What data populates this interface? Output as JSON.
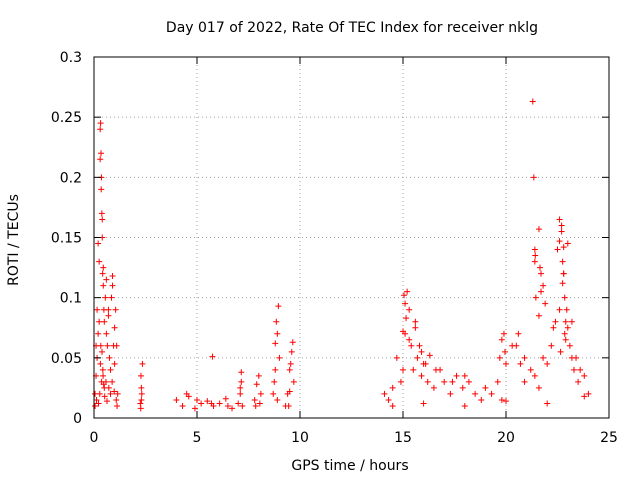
{
  "chart_data": {
    "type": "scatter",
    "title": "Day 017 of 2022, Rate Of TEC Index for receiver nklg",
    "xlabel": "GPS time / hours",
    "ylabel": "ROTI / TECUs",
    "xlim": [
      0,
      25
    ],
    "ylim": [
      0,
      0.3
    ],
    "xticks": [
      0,
      5,
      10,
      15,
      20,
      25
    ],
    "yticks": [
      0,
      0.05,
      0.1,
      0.15,
      0.2,
      0.25,
      0.3
    ],
    "xtick_labels": [
      "0",
      "5",
      "10",
      "15",
      "20",
      "25"
    ],
    "ytick_labels": [
      "0",
      "0.05",
      "0.1",
      "0.15",
      "0.2",
      "0.25",
      "0.3"
    ],
    "grid": true,
    "marker": "plus",
    "color": "#ff0000",
    "series": [
      {
        "x": [
          0.05,
          0.1,
          0.15,
          0.2,
          0.25,
          0.3,
          0.32,
          0.34,
          0.36,
          0.38,
          0.4,
          0.42,
          0.45,
          0.48,
          0.5,
          0.55,
          0.6,
          0.65,
          0.7,
          0.75,
          0.8,
          0.85,
          0.9,
          0.95,
          1.0,
          1.05,
          1.1,
          1.15,
          0.3,
          0.35,
          0.4,
          0.2,
          0.45,
          0.6,
          0.7,
          0.9,
          1.0,
          0.1,
          0.15,
          0.25,
          0.33,
          0.37,
          0.43,
          0.5,
          0.58,
          0.8,
          1.08,
          0.05,
          0.12,
          0.22,
          0.28,
          0.31,
          0.39,
          0.44,
          0.47,
          0.52,
          0.63,
          0.72,
          0.88,
          0.98,
          1.12,
          2.25,
          2.3,
          2.35,
          2.28,
          2.32,
          2.3,
          2.27,
          4.0,
          4.3,
          4.6,
          4.9,
          5.2,
          5.5,
          5.8,
          6.1,
          6.4,
          6.7,
          7.0,
          7.2,
          4.5,
          5.0,
          5.7,
          6.5,
          7.1,
          7.1,
          7.15,
          7.15,
          5.75,
          7.8,
          7.9,
          8.0,
          8.1,
          7.85,
          8.05,
          8.7,
          8.8,
          8.9,
          9.0,
          8.75,
          8.85,
          8.95,
          8.8,
          8.9,
          9.3,
          9.4,
          9.5,
          9.6,
          9.7,
          9.45,
          9.55,
          9.65,
          9.5,
          14.1,
          14.3,
          14.5,
          14.7,
          14.9,
          15.0,
          15.1,
          15.2,
          15.3,
          15.4,
          15.5,
          15.6,
          15.7,
          15.8,
          15.9,
          16.0,
          16.2,
          16.5,
          16.8,
          17.0,
          17.3,
          17.6,
          17.9,
          18.2,
          18.5,
          18.8,
          19.0,
          19.3,
          19.6,
          19.8,
          20.0,
          20.3,
          20.6,
          20.9,
          21.2,
          21.4,
          21.6,
          21.8,
          22.0,
          22.2,
          22.4,
          22.6,
          22.8,
          23.0,
          23.2,
          23.4,
          23.6,
          23.8,
          24.0,
          15.05,
          15.1,
          15.15,
          15.0,
          15.3,
          15.6,
          15.9,
          16.1,
          16.3,
          16.6,
          17.4,
          18.0,
          19.7,
          19.8,
          19.9,
          19.95,
          20.5,
          20.7,
          20.9,
          21.3,
          21.35,
          21.4,
          21.45,
          21.6,
          21.7,
          21.8,
          21.9,
          22.3,
          22.5,
          22.6,
          22.7,
          22.75,
          22.8,
          22.85,
          22.9,
          22.95,
          23.0,
          23.1,
          23.2,
          23.3,
          23.5,
          21.4,
          21.42,
          21.6,
          21.65,
          21.7,
          22.6,
          22.7,
          22.8,
          22.75,
          22.85,
          22.65,
          22.9,
          14.5,
          16.0,
          18.0,
          20.0,
          22.0,
          23.8
        ],
        "y": [
          0.02,
          0.06,
          0.09,
          0.07,
          0.13,
          0.24,
          0.245,
          0.22,
          0.2,
          0.17,
          0.15,
          0.12,
          0.11,
          0.09,
          0.08,
          0.1,
          0.07,
          0.06,
          0.09,
          0.05,
          0.04,
          0.1,
          0.118,
          0.06,
          0.045,
          0.09,
          0.06,
          0.02,
          0.215,
          0.19,
          0.165,
          0.145,
          0.125,
          0.115,
          0.085,
          0.11,
          0.075,
          0.035,
          0.05,
          0.08,
          0.06,
          0.03,
          0.04,
          0.025,
          0.03,
          0.02,
          0.015,
          0.01,
          0.015,
          0.012,
          0.02,
          0.045,
          0.055,
          0.035,
          0.028,
          0.018,
          0.014,
          0.025,
          0.03,
          0.022,
          0.01,
          0.012,
          0.025,
          0.045,
          0.035,
          0.02,
          0.015,
          0.008,
          0.015,
          0.01,
          0.018,
          0.008,
          0.012,
          0.014,
          0.01,
          0.012,
          0.016,
          0.008,
          0.012,
          0.01,
          0.02,
          0.015,
          0.012,
          0.01,
          0.02,
          0.025,
          0.038,
          0.03,
          0.051,
          0.015,
          0.028,
          0.035,
          0.02,
          0.01,
          0.012,
          0.02,
          0.04,
          0.07,
          0.05,
          0.03,
          0.08,
          0.093,
          0.062,
          0.015,
          0.01,
          0.02,
          0.04,
          0.055,
          0.03,
          0.01,
          0.045,
          0.063,
          0.022,
          0.02,
          0.015,
          0.025,
          0.05,
          0.03,
          0.04,
          0.07,
          0.105,
          0.09,
          0.06,
          0.04,
          0.08,
          0.05,
          0.06,
          0.035,
          0.045,
          0.03,
          0.025,
          0.04,
          0.03,
          0.02,
          0.035,
          0.025,
          0.03,
          0.02,
          0.015,
          0.025,
          0.02,
          0.03,
          0.015,
          0.045,
          0.06,
          0.07,
          0.03,
          0.04,
          0.035,
          0.025,
          0.05,
          0.045,
          0.06,
          0.08,
          0.09,
          0.12,
          0.145,
          0.08,
          0.05,
          0.04,
          0.035,
          0.02,
          0.102,
          0.095,
          0.083,
          0.072,
          0.065,
          0.075,
          0.055,
          0.045,
          0.052,
          0.04,
          0.03,
          0.035,
          0.05,
          0.065,
          0.07,
          0.055,
          0.06,
          0.045,
          0.05,
          0.263,
          0.2,
          0.13,
          0.1,
          0.085,
          0.12,
          0.11,
          0.095,
          0.075,
          0.14,
          0.165,
          0.155,
          0.13,
          0.12,
          0.1,
          0.08,
          0.09,
          0.075,
          0.06,
          0.05,
          0.04,
          0.03,
          0.14,
          0.135,
          0.157,
          0.125,
          0.105,
          0.147,
          0.16,
          0.142,
          0.112,
          0.07,
          0.055,
          0.065,
          0.01,
          0.012,
          0.01,
          0.014,
          0.012,
          0.018
        ]
      }
    ]
  }
}
